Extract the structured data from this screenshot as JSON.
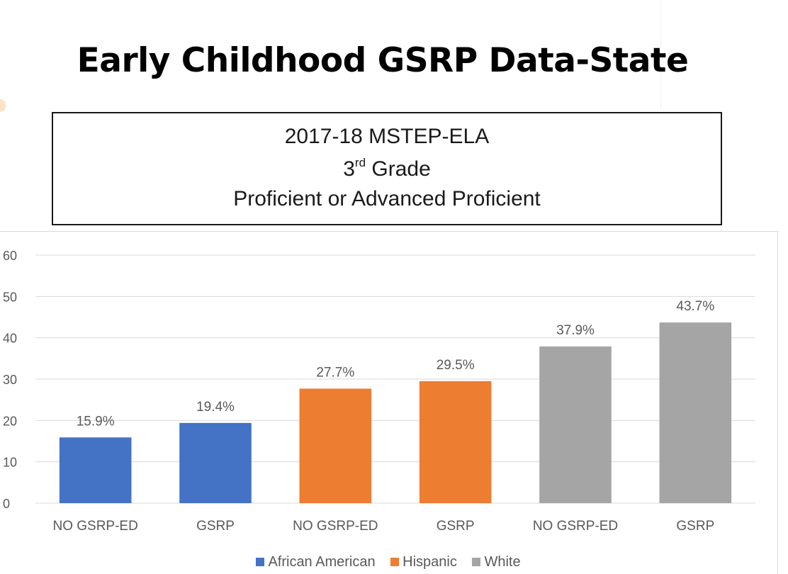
{
  "page": {
    "title": "Early Childhood GSRP Data-State"
  },
  "chart_title_box": {
    "line1": "2017-18 MSTEP-ELA",
    "line2_number": "3",
    "line2_suffix": "rd",
    "line2_rest": " Grade",
    "line3": "Proficient or Advanced Proficient"
  },
  "colors": {
    "african_american": "#4472c4",
    "hispanic": "#ed7d31",
    "white": "#a5a5a5",
    "gridline": "#d9d9d9",
    "text": "#595959"
  },
  "chart_data": {
    "type": "bar",
    "title": "",
    "xlabel": "",
    "ylabel": "",
    "ylim": [
      0,
      60
    ],
    "yticks": [
      0,
      10,
      20,
      30,
      40,
      50,
      60
    ],
    "grid": true,
    "legend_position": "bottom",
    "categories": [
      "NO GSRP-ED",
      "GSRP",
      "NO GSRP-ED",
      "GSRP",
      "NO GSRP-ED",
      "GSRP"
    ],
    "values": [
      15.9,
      19.4,
      27.7,
      29.5,
      37.9,
      43.7
    ],
    "data_labels": [
      "15.9%",
      "19.4%",
      "27.7%",
      "29.5%",
      "37.9%",
      "43.7%"
    ],
    "bar_series": [
      "African American",
      "African American",
      "Hispanic",
      "Hispanic",
      "White",
      "White"
    ],
    "legend": [
      {
        "name": "African American",
        "color": "#4472c4"
      },
      {
        "name": "Hispanic",
        "color": "#ed7d31"
      },
      {
        "name": "White",
        "color": "#a5a5a5"
      }
    ]
  }
}
